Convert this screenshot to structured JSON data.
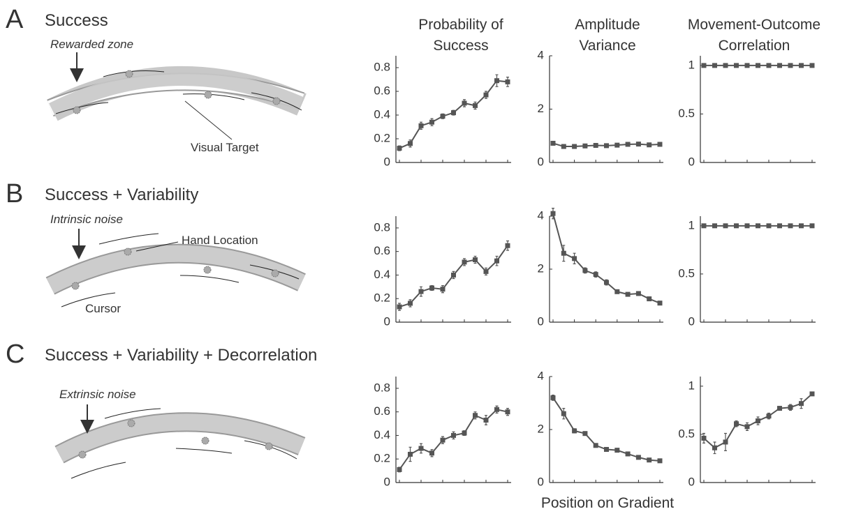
{
  "column_titles": [
    [
      "Probability of",
      "Success"
    ],
    [
      "Amplitude",
      "Variance"
    ],
    [
      "Movement-Outcome",
      "Correlation"
    ]
  ],
  "x_label": "Position on Gradient",
  "rows": [
    {
      "letter": "A",
      "title": "Success",
      "noise_label": "Rewarded zone",
      "annotations": [
        "Visual Target"
      ]
    },
    {
      "letter": "B",
      "title": "Success + Variability",
      "noise_label": "Intrinsic noise",
      "annotations": [
        "Hand Location",
        "Cursor"
      ]
    },
    {
      "letter": "C",
      "title": "Success + Variability + Decorrelation",
      "noise_label": "Extrinsic noise",
      "annotations": []
    }
  ],
  "chart_data": [
    {
      "type": "line",
      "categories": [
        null,
        null,
        null,
        null,
        null,
        null,
        null,
        null,
        null,
        null,
        null
      ],
      "ylim": [
        0,
        0.9
      ],
      "yticks": [
        0,
        0.2,
        0.4,
        0.6,
        0.8
      ],
      "series": [
        {
          "color": "#555555",
          "values": [
            0.12,
            0.16,
            0.31,
            0.34,
            0.39,
            0.42,
            0.5,
            0.48,
            0.57,
            0.69,
            0.68
          ],
          "errors": [
            0.02,
            0.03,
            0.03,
            0.03,
            0.02,
            0.02,
            0.03,
            0.03,
            0.03,
            0.05,
            0.04
          ]
        }
      ]
    },
    {
      "type": "line",
      "categories": [
        null,
        null,
        null,
        null,
        null,
        null,
        null,
        null,
        null,
        null,
        null
      ],
      "ylim": [
        0,
        4
      ],
      "yticks": [
        0,
        2,
        4
      ],
      "series": [
        {
          "color": "#555555",
          "values": [
            0.72,
            0.6,
            0.6,
            0.62,
            0.64,
            0.63,
            0.65,
            0.68,
            0.69,
            0.66,
            0.68
          ],
          "errors": [
            0.03,
            0.03,
            0.03,
            0.03,
            0.03,
            0.03,
            0.03,
            0.03,
            0.03,
            0.03,
            0.03
          ]
        }
      ]
    },
    {
      "type": "line",
      "categories": [
        null,
        null,
        null,
        null,
        null,
        null,
        null,
        null,
        null,
        null,
        null
      ],
      "ylim": [
        0,
        1.1
      ],
      "yticks": [
        0,
        0.5,
        1
      ],
      "series": [
        {
          "color": "#555555",
          "values": [
            1,
            1,
            1,
            1,
            1,
            1,
            1,
            1,
            1,
            1,
            1
          ],
          "errors": [
            0,
            0,
            0,
            0,
            0,
            0,
            0,
            0,
            0,
            0,
            0
          ]
        }
      ]
    },
    {
      "type": "line",
      "categories": [
        null,
        null,
        null,
        null,
        null,
        null,
        null,
        null,
        null,
        null,
        null
      ],
      "ylim": [
        0,
        0.9
      ],
      "yticks": [
        0,
        0.2,
        0.4,
        0.6,
        0.8
      ],
      "series": [
        {
          "color": "#555555",
          "values": [
            0.13,
            0.16,
            0.26,
            0.29,
            0.28,
            0.4,
            0.51,
            0.53,
            0.43,
            0.52,
            0.65
          ],
          "errors": [
            0.03,
            0.03,
            0.04,
            0.02,
            0.03,
            0.03,
            0.03,
            0.03,
            0.03,
            0.04,
            0.04
          ]
        }
      ]
    },
    {
      "type": "line",
      "categories": [
        null,
        null,
        null,
        null,
        null,
        null,
        null,
        null,
        null,
        null,
        null
      ],
      "ylim": [
        0,
        4
      ],
      "yticks": [
        0,
        2,
        4
      ],
      "series": [
        {
          "color": "#555555",
          "values": [
            4.1,
            2.6,
            2.4,
            1.95,
            1.8,
            1.5,
            1.15,
            1.05,
            1.08,
            0.88,
            0.72
          ],
          "errors": [
            0.2,
            0.3,
            0.2,
            0.1,
            0.1,
            0.1,
            0.05,
            0.05,
            0.05,
            0.05,
            0.05
          ]
        }
      ]
    },
    {
      "type": "line",
      "categories": [
        null,
        null,
        null,
        null,
        null,
        null,
        null,
        null,
        null,
        null,
        null
      ],
      "ylim": [
        0,
        1.1
      ],
      "yticks": [
        0,
        0.5,
        1
      ],
      "series": [
        {
          "color": "#555555",
          "values": [
            1,
            1,
            1,
            1,
            1,
            1,
            1,
            1,
            1,
            1,
            1
          ],
          "errors": [
            0,
            0,
            0,
            0,
            0,
            0,
            0,
            0,
            0,
            0,
            0
          ]
        }
      ]
    },
    {
      "type": "line",
      "categories": [
        null,
        null,
        null,
        null,
        null,
        null,
        null,
        null,
        null,
        null,
        null
      ],
      "ylim": [
        0,
        0.9
      ],
      "yticks": [
        0,
        0.2,
        0.4,
        0.6,
        0.8
      ],
      "series": [
        {
          "color": "#555555",
          "values": [
            0.11,
            0.24,
            0.29,
            0.25,
            0.36,
            0.4,
            0.42,
            0.57,
            0.53,
            0.62,
            0.6
          ],
          "errors": [
            0.02,
            0.06,
            0.04,
            0.03,
            0.03,
            0.03,
            0.02,
            0.03,
            0.04,
            0.03,
            0.03
          ]
        }
      ]
    },
    {
      "type": "line",
      "categories": [
        null,
        null,
        null,
        null,
        null,
        null,
        null,
        null,
        null,
        null,
        null
      ],
      "ylim": [
        0,
        4
      ],
      "yticks": [
        0,
        2,
        4
      ],
      "series": [
        {
          "color": "#555555",
          "values": [
            3.2,
            2.6,
            1.95,
            1.85,
            1.4,
            1.25,
            1.22,
            1.08,
            0.95,
            0.85,
            0.82
          ],
          "errors": [
            0.1,
            0.2,
            0.08,
            0.05,
            0.05,
            0.05,
            0.05,
            0.05,
            0.05,
            0.05,
            0.05
          ]
        }
      ]
    },
    {
      "type": "line",
      "categories": [
        null,
        null,
        null,
        null,
        null,
        null,
        null,
        null,
        null,
        null,
        null
      ],
      "ylim": [
        0,
        1.1
      ],
      "yticks": [
        0,
        0.5,
        1
      ],
      "series": [
        {
          "color": "#555555",
          "values": [
            0.46,
            0.36,
            0.42,
            0.61,
            0.58,
            0.64,
            0.69,
            0.77,
            0.78,
            0.82,
            0.92
          ],
          "errors": [
            0.05,
            0.06,
            0.09,
            0.03,
            0.04,
            0.04,
            0.03,
            0.02,
            0.03,
            0.05,
            0.01
          ]
        }
      ]
    }
  ]
}
